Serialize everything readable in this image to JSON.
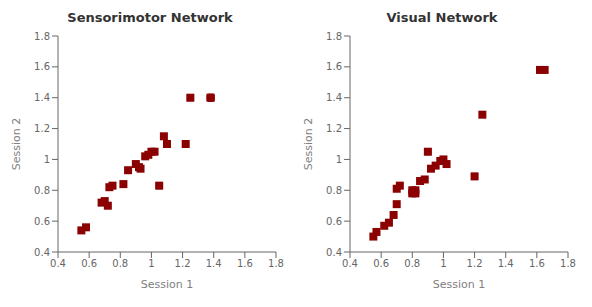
{
  "chart_data": [
    {
      "type": "scatter",
      "title": "Sensorimotor Network",
      "xlabel": "Session 1",
      "ylabel": "Session 2",
      "x": [
        0.55,
        0.58,
        0.68,
        0.7,
        0.72,
        0.73,
        0.75,
        0.82,
        0.85,
        0.9,
        0.92,
        0.93,
        0.96,
        0.98,
        1.0,
        1.02,
        1.05,
        1.08,
        1.1,
        1.22,
        1.25,
        1.38
      ],
      "values": [
        0.54,
        0.56,
        0.72,
        0.73,
        0.7,
        0.82,
        0.83,
        0.84,
        0.93,
        0.97,
        0.95,
        0.94,
        1.02,
        1.03,
        1.05,
        1.05,
        0.83,
        1.15,
        1.1,
        1.1,
        1.4,
        1.4
      ],
      "xerr": [
        0.012,
        0.012,
        0.01,
        0.01,
        0.01,
        0.01,
        0.01,
        0.012,
        0.01,
        0.01,
        0.01,
        0.01,
        0.01,
        0.01,
        0.01,
        0.01,
        0.018,
        0.015,
        0.01,
        0.015,
        0.018,
        0.022
      ],
      "yerr": [
        0.012,
        0.012,
        0.01,
        0.01,
        0.01,
        0.01,
        0.01,
        0.012,
        0.01,
        0.01,
        0.01,
        0.01,
        0.01,
        0.01,
        0.01,
        0.01,
        0.018,
        0.015,
        0.01,
        0.015,
        0.018,
        0.022
      ],
      "color": "#8B0000",
      "marker": "square",
      "grid": false,
      "xlim": [
        0.4,
        1.8
      ],
      "ylim": [
        0.4,
        1.8
      ],
      "xticks": [
        0.4,
        0.6,
        0.8,
        1,
        1.2,
        1.4,
        1.6,
        1.8
      ],
      "yticks": [
        0.4,
        0.6,
        0.8,
        1,
        1.2,
        1.4,
        1.6,
        1.8
      ]
    },
    {
      "type": "scatter",
      "title": "Visual Network",
      "xlabel": "Session 1",
      "ylabel": "Session 2",
      "x": [
        0.55,
        0.57,
        0.62,
        0.65,
        0.68,
        0.7,
        0.7,
        0.72,
        0.8,
        0.8,
        0.82,
        0.82,
        0.85,
        0.88,
        0.9,
        0.92,
        0.95,
        0.98,
        1.0,
        1.02,
        1.2,
        1.25,
        1.62,
        1.65
      ],
      "values": [
        0.5,
        0.53,
        0.57,
        0.59,
        0.64,
        0.71,
        0.81,
        0.83,
        0.78,
        0.8,
        0.8,
        0.78,
        0.86,
        0.87,
        1.05,
        0.94,
        0.96,
        0.99,
        1.0,
        0.97,
        0.89,
        1.29,
        1.58,
        1.58
      ],
      "xerr": [
        0.01,
        0.01,
        0.01,
        0.01,
        0.01,
        0.01,
        0.01,
        0.01,
        0.018,
        0.01,
        0.01,
        0.01,
        0.01,
        0.01,
        0.018,
        0.01,
        0.01,
        0.01,
        0.01,
        0.01,
        0.018,
        0.015,
        0.01,
        0.01
      ],
      "yerr": [
        0.01,
        0.01,
        0.01,
        0.01,
        0.01,
        0.01,
        0.01,
        0.01,
        0.018,
        0.01,
        0.01,
        0.01,
        0.01,
        0.01,
        0.018,
        0.01,
        0.01,
        0.01,
        0.01,
        0.01,
        0.018,
        0.015,
        0.01,
        0.01
      ],
      "color": "#8B0000",
      "marker": "square",
      "grid": false,
      "xlim": [
        0.4,
        1.8
      ],
      "ylim": [
        0.4,
        1.8
      ],
      "xticks": [
        0.4,
        0.6,
        0.8,
        1,
        1.2,
        1.4,
        1.6,
        1.8
      ],
      "yticks": [
        0.4,
        0.6,
        0.8,
        1,
        1.2,
        1.4,
        1.6,
        1.8
      ]
    }
  ]
}
